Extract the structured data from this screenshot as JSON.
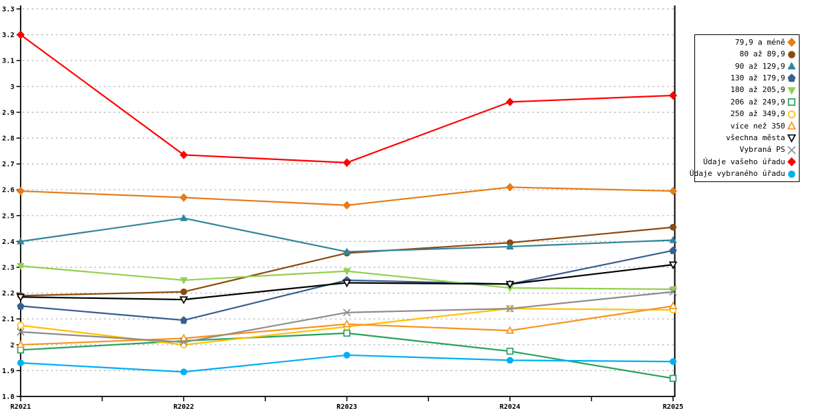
{
  "chart_data": {
    "type": "line",
    "title": "",
    "xlabel": "",
    "ylabel": "",
    "categories": [
      "R2021",
      "R2022",
      "R2023",
      "R2024",
      "R2025"
    ],
    "ylim": [
      1.8,
      3.3
    ],
    "ytick_labels": [
      "1.8",
      "1.9",
      "2",
      "2.1",
      "2.2",
      "2.3",
      "2.4",
      "2.5",
      "2.6",
      "2.7",
      "2.8",
      "2.9",
      "3",
      "3.1",
      "3.2",
      "3.3"
    ],
    "grid": "horizontal-dashed",
    "legend_position": "right",
    "gridline_color": "#BBBBBB",
    "axis_color": "#000000",
    "series": [
      {
        "name": "79,9 a méně",
        "color": "#E57D1A",
        "marker": "diamond",
        "fill": "solid",
        "values": [
          2.595,
          2.57,
          2.54,
          2.61,
          2.595
        ]
      },
      {
        "name": "80 až 89,9",
        "color": "#8C4A10",
        "marker": "circle",
        "fill": "solid",
        "values": [
          2.19,
          2.205,
          2.355,
          2.395,
          2.455
        ]
      },
      {
        "name": "90 až 129,9",
        "color": "#31859C",
        "marker": "triangle-up",
        "fill": "solid",
        "values": [
          2.4,
          2.49,
          2.36,
          2.38,
          2.405
        ]
      },
      {
        "name": "130 až 179,9",
        "color": "#36608F",
        "marker": "pentagon",
        "fill": "solid",
        "values": [
          2.15,
          2.095,
          2.25,
          2.235,
          2.365
        ]
      },
      {
        "name": "180 až 205,9",
        "color": "#92D050",
        "marker": "triangle-down",
        "fill": "solid",
        "values": [
          2.305,
          2.25,
          2.285,
          2.22,
          2.215
        ]
      },
      {
        "name": "206 až 249,9",
        "color": "#26A35C",
        "marker": "square",
        "fill": "open",
        "values": [
          1.98,
          2.015,
          2.045,
          1.975,
          1.87
        ]
      },
      {
        "name": "250 až 349,9",
        "color": "#FFC000",
        "marker": "circle",
        "fill": "open",
        "values": [
          2.075,
          2.0,
          2.07,
          2.14,
          2.135
        ]
      },
      {
        "name": "více než 350",
        "color": "#F8931D",
        "marker": "triangle-up",
        "fill": "open",
        "values": [
          2.0,
          2.025,
          2.08,
          2.055,
          2.15
        ]
      },
      {
        "name": "všechna města",
        "color": "#000000",
        "marker": "triangle-down",
        "fill": "open",
        "values": [
          2.185,
          2.175,
          2.24,
          2.235,
          2.31
        ]
      },
      {
        "name": "Vybraná PS",
        "color": "#8C8C8C",
        "marker": "x",
        "fill": "line",
        "values": [
          2.05,
          2.01,
          2.125,
          2.14,
          2.205
        ]
      },
      {
        "name": "Údaje vašeho úřadu",
        "color": "#FF0000",
        "marker": "diamond",
        "fill": "solid",
        "values": [
          3.2,
          2.735,
          2.705,
          2.94,
          2.965
        ]
      },
      {
        "name": "Údaje vybraného úřadu",
        "color": "#00B0F0",
        "marker": "circle",
        "fill": "solid",
        "values": [
          1.93,
          1.895,
          1.96,
          1.94,
          1.935
        ]
      }
    ]
  }
}
